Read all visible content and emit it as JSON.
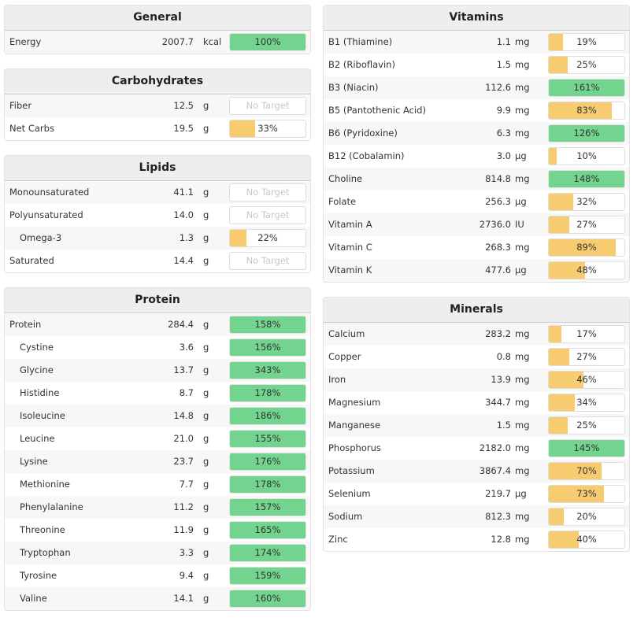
{
  "colors": {
    "over": "#72d48e",
    "under": "#f7cb6f"
  },
  "no_target_label": "No Target",
  "left": [
    {
      "title": "General",
      "rows": [
        {
          "name": "Energy",
          "value": "2007.7",
          "unit": "kcal",
          "pct": 100
        }
      ]
    },
    {
      "title": "Carbohydrates",
      "rows": [
        {
          "name": "Fiber",
          "value": "12.5",
          "unit": "g",
          "pct": null
        },
        {
          "name": "Net Carbs",
          "value": "19.5",
          "unit": "g",
          "pct": 33
        }
      ]
    },
    {
      "title": "Lipids",
      "rows": [
        {
          "name": "Monounsaturated",
          "value": "41.1",
          "unit": "g",
          "pct": null
        },
        {
          "name": "Polyunsaturated",
          "value": "14.0",
          "unit": "g",
          "pct": null
        },
        {
          "name": "Omega-3",
          "value": "1.3",
          "unit": "g",
          "pct": 22,
          "indent": true
        },
        {
          "name": "Saturated",
          "value": "14.4",
          "unit": "g",
          "pct": null
        }
      ]
    },
    {
      "title": "Protein",
      "rows": [
        {
          "name": "Protein",
          "value": "284.4",
          "unit": "g",
          "pct": 158
        },
        {
          "name": "Cystine",
          "value": "3.6",
          "unit": "g",
          "pct": 156,
          "indent": true
        },
        {
          "name": "Glycine",
          "value": "13.7",
          "unit": "g",
          "pct": 343,
          "indent": true
        },
        {
          "name": "Histidine",
          "value": "8.7",
          "unit": "g",
          "pct": 178,
          "indent": true
        },
        {
          "name": "Isoleucine",
          "value": "14.8",
          "unit": "g",
          "pct": 186,
          "indent": true
        },
        {
          "name": "Leucine",
          "value": "21.0",
          "unit": "g",
          "pct": 155,
          "indent": true
        },
        {
          "name": "Lysine",
          "value": "23.7",
          "unit": "g",
          "pct": 176,
          "indent": true
        },
        {
          "name": "Methionine",
          "value": "7.7",
          "unit": "g",
          "pct": 178,
          "indent": true
        },
        {
          "name": "Phenylalanine",
          "value": "11.2",
          "unit": "g",
          "pct": 157,
          "indent": true
        },
        {
          "name": "Threonine",
          "value": "11.9",
          "unit": "g",
          "pct": 165,
          "indent": true
        },
        {
          "name": "Tryptophan",
          "value": "3.3",
          "unit": "g",
          "pct": 174,
          "indent": true
        },
        {
          "name": "Tyrosine",
          "value": "9.4",
          "unit": "g",
          "pct": 159,
          "indent": true
        },
        {
          "name": "Valine",
          "value": "14.1",
          "unit": "g",
          "pct": 160,
          "indent": true
        }
      ]
    }
  ],
  "right": [
    {
      "title": "Vitamins",
      "rows": [
        {
          "name": "B1 (Thiamine)",
          "value": "1.1",
          "unit": "mg",
          "pct": 19
        },
        {
          "name": "B2 (Riboflavin)",
          "value": "1.5",
          "unit": "mg",
          "pct": 25
        },
        {
          "name": "B3 (Niacin)",
          "value": "112.6",
          "unit": "mg",
          "pct": 161
        },
        {
          "name": "B5 (Pantothenic Acid)",
          "value": "9.9",
          "unit": "mg",
          "pct": 83
        },
        {
          "name": "B6 (Pyridoxine)",
          "value": "6.3",
          "unit": "mg",
          "pct": 126
        },
        {
          "name": "B12 (Cobalamin)",
          "value": "3.0",
          "unit": "µg",
          "pct": 10
        },
        {
          "name": "Choline",
          "value": "814.8",
          "unit": "mg",
          "pct": 148
        },
        {
          "name": "Folate",
          "value": "256.3",
          "unit": "µg",
          "pct": 32
        },
        {
          "name": "Vitamin A",
          "value": "2736.0",
          "unit": "IU",
          "pct": 27
        },
        {
          "name": "Vitamin C",
          "value": "268.3",
          "unit": "mg",
          "pct": 89
        },
        {
          "name": "Vitamin K",
          "value": "477.6",
          "unit": "µg",
          "pct": 48
        }
      ]
    },
    {
      "title": "Minerals",
      "rows": [
        {
          "name": "Calcium",
          "value": "283.2",
          "unit": "mg",
          "pct": 17
        },
        {
          "name": "Copper",
          "value": "0.8",
          "unit": "mg",
          "pct": 27
        },
        {
          "name": "Iron",
          "value": "13.9",
          "unit": "mg",
          "pct": 46
        },
        {
          "name": "Magnesium",
          "value": "344.7",
          "unit": "mg",
          "pct": 34
        },
        {
          "name": "Manganese",
          "value": "1.5",
          "unit": "mg",
          "pct": 25
        },
        {
          "name": "Phosphorus",
          "value": "2182.0",
          "unit": "mg",
          "pct": 145
        },
        {
          "name": "Potassium",
          "value": "3867.4",
          "unit": "mg",
          "pct": 70
        },
        {
          "name": "Selenium",
          "value": "219.7",
          "unit": "µg",
          "pct": 73
        },
        {
          "name": "Sodium",
          "value": "812.3",
          "unit": "mg",
          "pct": 20
        },
        {
          "name": "Zinc",
          "value": "12.8",
          "unit": "mg",
          "pct": 40
        }
      ]
    }
  ]
}
